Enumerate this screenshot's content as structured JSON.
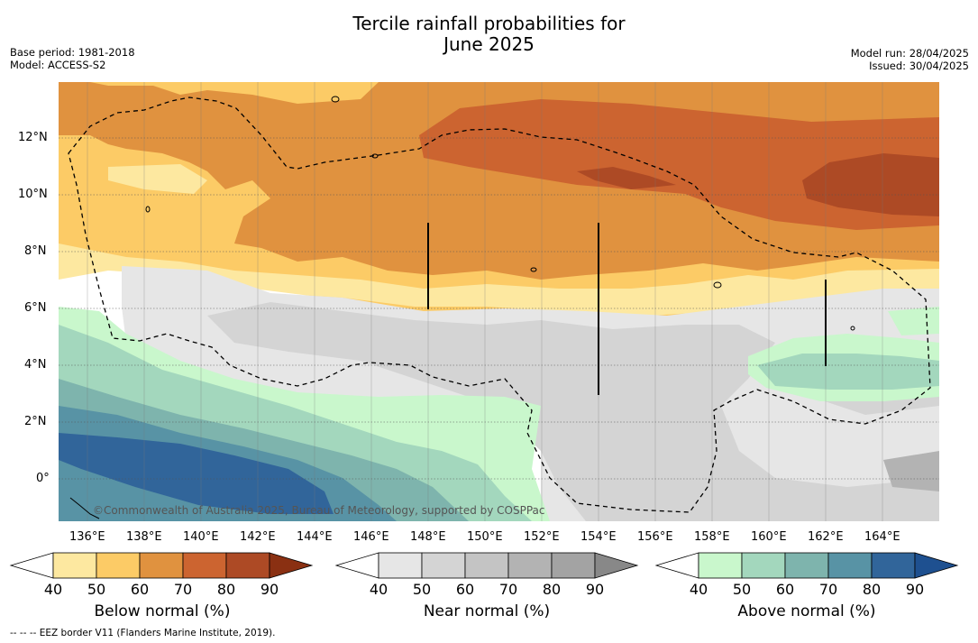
{
  "title_line1": "Tercile rainfall probabilities for",
  "title_line2": "June 2025",
  "meta_left": [
    "Base period: 1981-2018",
    "Model: ACCESS-S2"
  ],
  "meta_right": [
    "Model run: 28/04/2025",
    "Issued: 30/04/2025"
  ],
  "map": {
    "lon_ticks": [
      "136°E",
      "138°E",
      "140°E",
      "142°E",
      "144°E",
      "146°E",
      "148°E",
      "150°E",
      "152°E",
      "154°E",
      "156°E",
      "158°E",
      "160°E",
      "162°E",
      "164°E"
    ],
    "lat_ticks": [
      "12°N",
      "10°N",
      "8°N",
      "6°N",
      "4°N",
      "2°N",
      "0°"
    ],
    "copyright": "©Commonwealth of Australia 2025, Bureau of Meteorology, supported by COSPPac"
  },
  "colorbars": [
    {
      "title": "Below normal (%)",
      "labels": [
        "40",
        "50",
        "60",
        "70",
        "80",
        "90"
      ],
      "colors": [
        "#ffffff",
        "#fde8a0",
        "#fccb66",
        "#e0923f",
        "#cc6430",
        "#ad4a25",
        "#8a3012"
      ]
    },
    {
      "title": "Near normal (%)",
      "labels": [
        "40",
        "50",
        "60",
        "70",
        "80",
        "90"
      ],
      "colors": [
        "#ffffff",
        "#e6e6e6",
        "#d4d4d4",
        "#c4c4c4",
        "#b3b3b3",
        "#a3a3a3",
        "#888888"
      ]
    },
    {
      "title": "Above normal (%)",
      "labels": [
        "40",
        "50",
        "60",
        "70",
        "80",
        "90"
      ],
      "colors": [
        "#ffffff",
        "#c9f7cc",
        "#a3d7bd",
        "#7eb4ad",
        "#5893a5",
        "#31659a",
        "#1e5090"
      ]
    }
  ],
  "footnote": "--  --  -- EEZ border V11 (Flanders Marine Institute, 2019)."
}
